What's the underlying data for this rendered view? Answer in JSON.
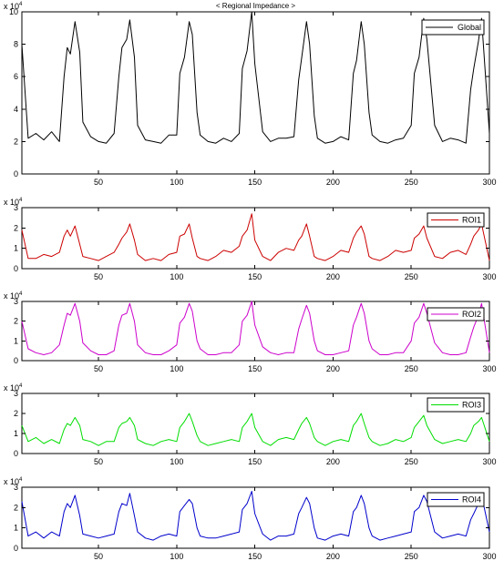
{
  "chart_data": [
    {
      "type": "line",
      "title": "< Regional Impedance >",
      "xlabel": "",
      "ylabel": "",
      "xlim": [
        1,
        300
      ],
      "ylim": [
        0,
        10
      ],
      "y_multiplier": "x 10^4",
      "x_ticks": [
        50,
        100,
        150,
        200,
        250,
        300
      ],
      "y_ticks": [
        0,
        2,
        4,
        6,
        8,
        10
      ],
      "legend_position": "top-right",
      "series": [
        {
          "name": "Global",
          "color": "#000000",
          "x": [
            1,
            5,
            10,
            15,
            20,
            25,
            28,
            30,
            32,
            35,
            38,
            40,
            45,
            50,
            55,
            60,
            63,
            65,
            68,
            70,
            73,
            75,
            80,
            85,
            90,
            95,
            100,
            102,
            105,
            108,
            110,
            113,
            115,
            120,
            125,
            130,
            135,
            140,
            142,
            145,
            148,
            150,
            155,
            160,
            165,
            170,
            175,
            178,
            180,
            183,
            185,
            188,
            190,
            195,
            200,
            205,
            210,
            213,
            215,
            218,
            220,
            223,
            225,
            230,
            235,
            240,
            245,
            250,
            252,
            255,
            258,
            260,
            265,
            270,
            275,
            280,
            285,
            288,
            290,
            293,
            295,
            300
          ],
          "y": [
            8.0,
            2.2,
            2.5,
            2.1,
            2.6,
            2.0,
            6.0,
            7.8,
            7.4,
            9.4,
            7.5,
            3.2,
            2.3,
            2.0,
            1.9,
            2.5,
            6.0,
            7.8,
            8.3,
            9.5,
            7.2,
            3.0,
            2.1,
            2.0,
            1.9,
            2.4,
            2.4,
            6.2,
            7.2,
            9.4,
            8.6,
            3.8,
            2.4,
            2.0,
            1.9,
            2.2,
            2.0,
            2.5,
            6.5,
            7.6,
            10.0,
            6.8,
            2.6,
            2.0,
            2.2,
            2.2,
            2.3,
            5.8,
            7.2,
            9.4,
            8.0,
            3.6,
            2.2,
            1.9,
            2.0,
            2.3,
            2.1,
            6.2,
            7.0,
            9.4,
            8.0,
            3.8,
            2.4,
            2.0,
            1.9,
            2.1,
            2.2,
            3.0,
            6.2,
            7.2,
            9.6,
            8.3,
            3.0,
            2.0,
            2.2,
            2.1,
            1.9,
            5.2,
            6.5,
            8.2,
            9.6,
            2.5
          ]
        }
      ]
    },
    {
      "type": "line",
      "xlim": [
        1,
        300
      ],
      "ylim": [
        0,
        3
      ],
      "y_multiplier": "x 10^4",
      "x_ticks": [
        50,
        100,
        150,
        200,
        250,
        300
      ],
      "y_ticks": [
        0,
        1,
        2,
        3
      ],
      "legend_position": "top-right",
      "series": [
        {
          "name": "ROI1",
          "color": "#cc0000",
          "x": [
            1,
            5,
            10,
            15,
            20,
            25,
            28,
            30,
            32,
            35,
            38,
            40,
            45,
            50,
            55,
            60,
            63,
            65,
            68,
            70,
            73,
            75,
            80,
            85,
            90,
            95,
            100,
            102,
            105,
            108,
            110,
            113,
            115,
            120,
            125,
            130,
            135,
            140,
            142,
            145,
            148,
            150,
            155,
            160,
            165,
            170,
            175,
            178,
            180,
            183,
            185,
            188,
            190,
            195,
            200,
            205,
            210,
            213,
            215,
            218,
            220,
            223,
            225,
            230,
            235,
            240,
            245,
            250,
            252,
            255,
            258,
            260,
            265,
            270,
            275,
            280,
            285,
            288,
            290,
            293,
            295,
            300
          ],
          "y": [
            1.9,
            0.5,
            0.5,
            0.7,
            0.6,
            0.8,
            1.6,
            1.9,
            1.6,
            2.1,
            1.2,
            0.6,
            0.5,
            0.4,
            0.6,
            0.8,
            1.2,
            1.5,
            1.8,
            2.2,
            1.4,
            0.7,
            0.4,
            0.5,
            0.4,
            0.7,
            0.8,
            1.6,
            1.7,
            2.2,
            1.5,
            0.6,
            0.5,
            0.4,
            0.6,
            0.9,
            0.8,
            1.1,
            1.6,
            1.9,
            2.7,
            1.4,
            0.6,
            0.4,
            0.8,
            1.0,
            0.9,
            1.4,
            1.6,
            2.2,
            1.6,
            0.6,
            0.5,
            0.4,
            0.6,
            0.9,
            0.8,
            1.5,
            1.8,
            2.1,
            1.7,
            0.6,
            0.5,
            0.4,
            0.6,
            0.9,
            0.8,
            0.9,
            1.5,
            1.7,
            2.1,
            1.5,
            0.6,
            0.5,
            0.8,
            0.9,
            0.7,
            1.2,
            1.6,
            1.9,
            2.2,
            0.4
          ]
        }
      ]
    },
    {
      "type": "line",
      "xlim": [
        1,
        300
      ],
      "ylim": [
        0,
        3
      ],
      "y_multiplier": "x 10^4",
      "x_ticks": [
        50,
        100,
        150,
        200,
        250,
        300
      ],
      "y_ticks": [
        0,
        1,
        2,
        3
      ],
      "legend_position": "top-right",
      "series": [
        {
          "name": "ROI2",
          "color": "#cc00cc",
          "x": [
            1,
            5,
            10,
            15,
            20,
            25,
            28,
            30,
            32,
            35,
            38,
            40,
            45,
            50,
            55,
            60,
            63,
            65,
            68,
            70,
            73,
            75,
            80,
            85,
            90,
            95,
            100,
            102,
            105,
            108,
            110,
            113,
            115,
            120,
            125,
            130,
            135,
            140,
            142,
            145,
            148,
            150,
            155,
            160,
            165,
            170,
            175,
            178,
            180,
            183,
            185,
            188,
            190,
            195,
            200,
            205,
            210,
            213,
            215,
            218,
            220,
            223,
            225,
            230,
            235,
            240,
            245,
            250,
            252,
            255,
            258,
            260,
            265,
            270,
            275,
            280,
            285,
            288,
            290,
            293,
            295,
            300
          ],
          "y": [
            2.0,
            0.6,
            0.4,
            0.3,
            0.4,
            0.8,
            1.8,
            2.4,
            2.3,
            2.9,
            2.0,
            0.9,
            0.5,
            0.3,
            0.3,
            0.5,
            1.8,
            2.3,
            2.4,
            2.9,
            2.0,
            0.8,
            0.4,
            0.3,
            0.3,
            0.5,
            0.8,
            1.9,
            2.2,
            2.9,
            2.5,
            1.0,
            0.6,
            0.3,
            0.3,
            0.4,
            0.4,
            0.8,
            2.0,
            2.3,
            3.0,
            1.8,
            0.7,
            0.4,
            0.3,
            0.4,
            0.4,
            1.6,
            2.1,
            2.8,
            2.4,
            1.0,
            0.5,
            0.3,
            0.3,
            0.4,
            0.5,
            1.8,
            2.2,
            2.9,
            2.4,
            1.0,
            0.6,
            0.3,
            0.3,
            0.4,
            0.4,
            1.0,
            1.9,
            2.2,
            2.9,
            2.4,
            0.9,
            0.4,
            0.3,
            0.3,
            0.4,
            1.2,
            1.7,
            2.3,
            2.9,
            0.4
          ]
        }
      ]
    },
    {
      "type": "line",
      "xlim": [
        1,
        300
      ],
      "ylim": [
        0,
        3
      ],
      "y_multiplier": "x 10^4",
      "x_ticks": [
        50,
        100,
        150,
        200,
        250,
        300
      ],
      "y_ticks": [
        0,
        1,
        2,
        3
      ],
      "legend_position": "top-right",
      "series": [
        {
          "name": "ROI3",
          "color": "#00dd00",
          "x": [
            1,
            5,
            10,
            15,
            20,
            25,
            28,
            30,
            32,
            35,
            38,
            40,
            45,
            50,
            55,
            60,
            63,
            65,
            68,
            70,
            73,
            75,
            80,
            85,
            90,
            95,
            100,
            102,
            105,
            108,
            110,
            113,
            115,
            120,
            125,
            130,
            135,
            140,
            142,
            145,
            148,
            150,
            155,
            160,
            165,
            170,
            175,
            178,
            180,
            183,
            185,
            188,
            190,
            195,
            200,
            205,
            210,
            213,
            215,
            218,
            220,
            223,
            225,
            230,
            235,
            240,
            245,
            250,
            252,
            255,
            258,
            260,
            265,
            270,
            275,
            280,
            285,
            288,
            290,
            293,
            295,
            300
          ],
          "y": [
            1.4,
            0.6,
            0.8,
            0.5,
            0.7,
            0.5,
            1.2,
            1.5,
            1.4,
            1.8,
            1.4,
            0.7,
            0.6,
            0.4,
            0.6,
            0.6,
            1.3,
            1.5,
            1.6,
            1.8,
            1.4,
            0.7,
            0.5,
            0.4,
            0.6,
            0.7,
            0.6,
            1.3,
            1.6,
            2.0,
            1.6,
            0.9,
            0.6,
            0.4,
            0.5,
            0.6,
            0.7,
            0.6,
            1.3,
            1.6,
            2.0,
            1.3,
            0.6,
            0.4,
            0.7,
            0.8,
            0.7,
            1.2,
            1.5,
            1.8,
            1.5,
            0.8,
            0.6,
            0.4,
            0.6,
            0.7,
            0.6,
            1.4,
            1.6,
            2.0,
            1.5,
            0.8,
            0.6,
            0.4,
            0.5,
            0.7,
            0.6,
            0.8,
            1.3,
            1.6,
            1.9,
            1.4,
            0.7,
            0.5,
            0.6,
            0.7,
            0.6,
            1.0,
            1.4,
            1.6,
            1.8,
            0.6
          ]
        }
      ]
    },
    {
      "type": "line",
      "xlim": [
        1,
        300
      ],
      "ylim": [
        0,
        3
      ],
      "y_multiplier": "x 10^4",
      "x_ticks": [
        50,
        100,
        150,
        200,
        250,
        300
      ],
      "y_ticks": [
        0,
        1,
        2,
        3
      ],
      "legend_position": "top-right",
      "series": [
        {
          "name": "ROI4",
          "color": "#0000cc",
          "x": [
            1,
            5,
            10,
            15,
            20,
            25,
            28,
            30,
            32,
            35,
            38,
            40,
            45,
            50,
            55,
            60,
            63,
            65,
            68,
            70,
            73,
            75,
            80,
            85,
            90,
            95,
            100,
            102,
            105,
            108,
            110,
            113,
            115,
            120,
            125,
            130,
            135,
            140,
            142,
            145,
            148,
            150,
            155,
            160,
            165,
            170,
            175,
            178,
            180,
            183,
            185,
            188,
            190,
            195,
            200,
            205,
            210,
            213,
            215,
            218,
            220,
            223,
            225,
            230,
            235,
            240,
            245,
            250,
            252,
            255,
            258,
            260,
            265,
            270,
            275,
            280,
            285,
            288,
            290,
            293,
            295,
            300
          ],
          "y": [
            2.3,
            0.6,
            0.8,
            0.5,
            0.8,
            0.6,
            1.8,
            2.2,
            2.0,
            2.6,
            1.6,
            0.7,
            0.6,
            0.5,
            0.6,
            0.7,
            1.8,
            2.2,
            2.1,
            2.7,
            1.6,
            0.8,
            0.5,
            0.4,
            0.6,
            0.7,
            0.6,
            1.8,
            2.1,
            2.4,
            2.2,
            1.0,
            0.6,
            0.5,
            0.5,
            0.6,
            0.7,
            0.8,
            1.9,
            2.2,
            2.8,
            1.7,
            0.7,
            0.4,
            0.6,
            0.6,
            0.7,
            1.7,
            2.0,
            2.5,
            2.2,
            1.0,
            0.5,
            0.4,
            0.6,
            0.7,
            0.6,
            1.8,
            2.0,
            2.6,
            2.2,
            1.0,
            0.6,
            0.4,
            0.5,
            0.6,
            0.7,
            0.8,
            1.8,
            2.0,
            2.6,
            2.3,
            0.8,
            0.5,
            0.6,
            0.7,
            0.6,
            1.4,
            1.7,
            2.2,
            2.6,
            0.8
          ]
        }
      ]
    }
  ]
}
